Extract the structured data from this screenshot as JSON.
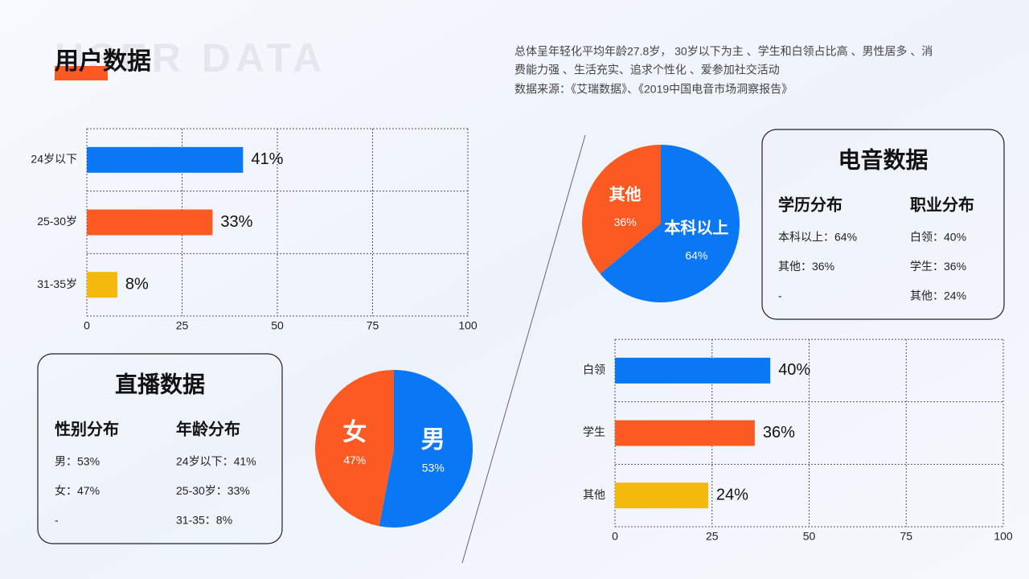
{
  "header": {
    "title": "用户数据",
    "watermark": "USER DATA",
    "description": [
      "总体呈年轻化平均年龄27.8岁， 30岁以下为主 、学生和白领占比高 、男性居多 、消",
      "费能力强 、生活充实、追求个性化 、爱参加社交活动",
      "数据来源：《艾瑞数据》、《2019中国电音市场洞察报告》"
    ]
  },
  "chart_data": [
    {
      "type": "bar",
      "categories": [
        "24岁以下",
        "25-30岁",
        "31-35岁"
      ],
      "values": [
        41,
        33,
        8
      ],
      "value_labels": [
        "41%",
        "33%",
        "8%"
      ],
      "colors": [
        "#0a77f5",
        "#fc5a23",
        "#f5b80d"
      ],
      "xlim": [
        0,
        100
      ],
      "xticks": [
        0,
        25,
        50,
        75,
        100
      ],
      "grid": true
    },
    {
      "type": "pie",
      "categories": [
        "男",
        "女"
      ],
      "values": [
        53,
        47
      ],
      "value_labels": [
        "53%",
        "47%"
      ],
      "colors": [
        "#0a77f5",
        "#fc5a23"
      ]
    },
    {
      "type": "pie",
      "categories": [
        "本科以上",
        "其他"
      ],
      "values": [
        64,
        36
      ],
      "value_labels": [
        "64%",
        "36%"
      ],
      "colors": [
        "#0a77f5",
        "#fc5a23"
      ]
    },
    {
      "type": "bar",
      "categories": [
        "白领",
        "学生",
        "其他"
      ],
      "values": [
        40,
        36,
        24
      ],
      "value_labels": [
        "40%",
        "36%",
        "24%"
      ],
      "colors": [
        "#0a77f5",
        "#fc5a23",
        "#f5b80d"
      ],
      "xlim": [
        0,
        100
      ],
      "xticks": [
        0,
        25,
        50,
        75,
        100
      ],
      "grid": true
    }
  ],
  "panels": [
    {
      "title": "直播数据",
      "columns": [
        {
          "heading": "性别分布",
          "items": [
            "男：53%",
            "女：47%",
            "-"
          ]
        },
        {
          "heading": "年龄分布",
          "items": [
            "24岁以下：41%",
            "25-30岁：33%",
            "31-35：8%"
          ]
        }
      ]
    },
    {
      "title": "电音数据",
      "columns": [
        {
          "heading": "学历分布",
          "items": [
            "本科以上：64%",
            "其他：36%",
            "-"
          ]
        },
        {
          "heading": "职业分布",
          "items": [
            "白领：40%",
            "学生：36%",
            "其他：24%"
          ]
        }
      ]
    }
  ]
}
